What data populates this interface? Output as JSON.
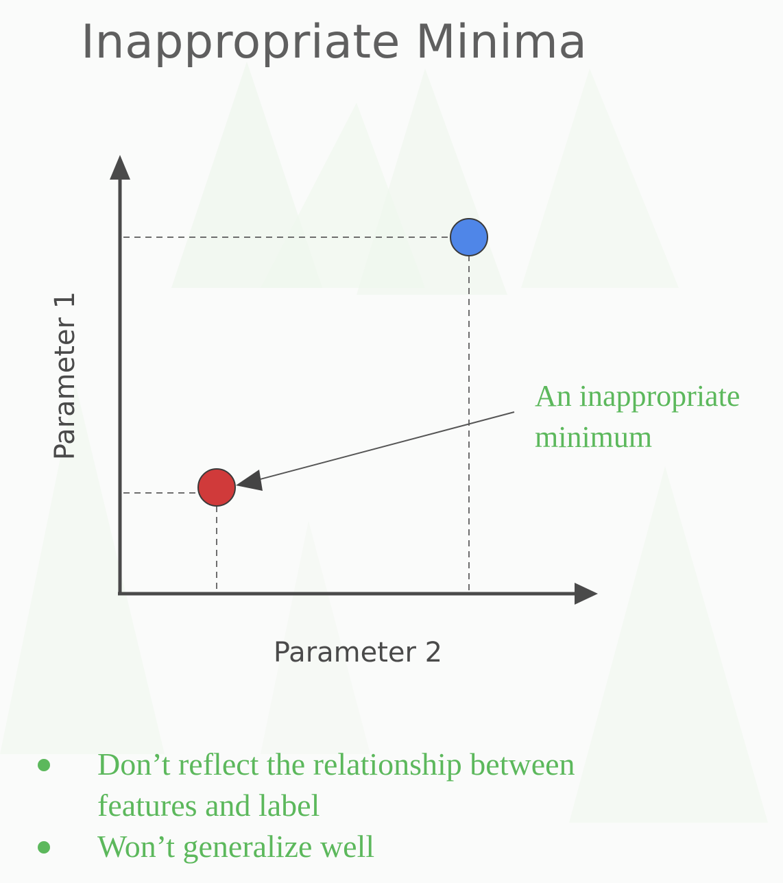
{
  "title": "Inappropriate Minima",
  "diagram": {
    "y_axis_label": "Parameter 1",
    "x_axis_label": "Parameter 2",
    "annotation_lines": [
      "An inappropriate",
      "minimum"
    ],
    "points": [
      {
        "name": "blue-point",
        "color": "#4f86e8"
      },
      {
        "name": "red-minimum-point",
        "color": "#d03a3a"
      }
    ]
  },
  "bullets": [
    {
      "lines": [
        "Don’t reflect the relationship between",
        "features and label"
      ]
    },
    {
      "lines": [
        "Won’t generalize well"
      ]
    }
  ],
  "colors": {
    "accent_green": "#5cb85c",
    "axis": "#4a4a4a",
    "title": "#5f5f5f"
  }
}
